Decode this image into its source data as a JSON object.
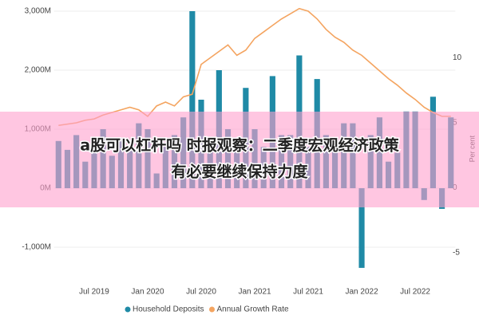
{
  "chart_data": {
    "type": "bar",
    "categories": [
      null,
      null,
      null,
      null,
      "Jul 2019",
      null,
      null,
      null,
      null,
      null,
      "Jan 2020",
      null,
      null,
      null,
      null,
      null,
      "Jul 2020",
      null,
      null,
      null,
      null,
      null,
      "Jan 2021",
      null,
      null,
      null,
      null,
      null,
      "Jul 2021",
      null,
      null,
      null,
      null,
      null,
      "Jan 2022",
      null,
      null,
      null,
      null,
      null,
      "Jul 2022",
      null,
      null,
      null,
      null
    ],
    "series": [
      {
        "name": "Household Deposits",
        "type": "bar",
        "axis": "y",
        "color": "#1f8aa6",
        "values": [
          800,
          650,
          900,
          450,
          700,
          1000,
          550,
          850,
          700,
          1100,
          1000,
          250,
          700,
          900,
          1200,
          3000,
          1500,
          800,
          2000,
          1000,
          700,
          1700,
          1000,
          700,
          1900,
          900,
          900,
          2250,
          700,
          1850,
          900,
          700,
          1100,
          1100,
          -1350,
          900,
          1200,
          450,
          600,
          1300,
          1300,
          -200,
          1550,
          -350,
          1200
        ]
      },
      {
        "name": "Annual Growth Rate",
        "type": "line",
        "axis": "y2",
        "color": "#f4a460",
        "values": [
          4.8,
          4.9,
          5.0,
          5.2,
          5.3,
          5.6,
          5.8,
          6.0,
          6.2,
          6.0,
          5.5,
          6.3,
          6.6,
          6.3,
          7.0,
          7.2,
          9.5,
          10.0,
          10.5,
          11.0,
          10.2,
          10.6,
          11.5,
          12.0,
          12.5,
          13.0,
          13.4,
          13.8,
          13.6,
          13.0,
          12.2,
          11.6,
          11.2,
          10.6,
          10.2,
          9.6,
          9.0,
          8.4,
          7.9,
          7.3,
          6.8,
          6.2,
          5.8,
          5.5,
          5.5
        ]
      }
    ],
    "ylim": [
      -1400,
      3000
    ],
    "yticks": [
      {
        "value": -1000,
        "label": "-1,000M"
      },
      {
        "value": 0,
        "label": "0M"
      },
      {
        "value": 1000,
        "label": "1,000M"
      },
      {
        "value": 2000,
        "label": "2,000M"
      },
      {
        "value": 3000,
        "label": "3,000M"
      }
    ],
    "y2lim": [
      -6.4,
      13.6
    ],
    "y2ticks": [
      -5,
      0,
      5,
      10
    ],
    "y2label": "Per cent",
    "legend": "bottom"
  },
  "overlay": {
    "lines": [
      "a股可以杠杆吗 时报观察：二季度宏观经济政策",
      "有必要继续保持力度"
    ]
  }
}
